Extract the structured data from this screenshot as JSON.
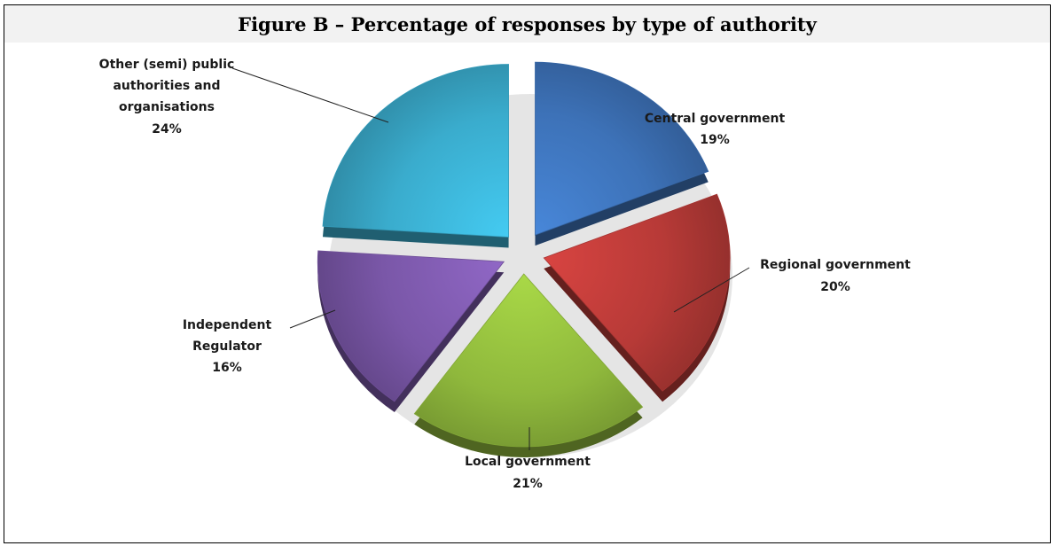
{
  "chart_data": {
    "type": "pie",
    "title": "Figure B – Percentage of responses by type of authority",
    "exploded": true,
    "style": "3d",
    "legend": "none",
    "slices": [
      {
        "label": "Central government",
        "value": 19,
        "value_label": "19%",
        "color": "#3d72b8"
      },
      {
        "label": "Regional government",
        "value": 20,
        "value_label": "20%",
        "color": "#b73a37"
      },
      {
        "label": "Local government",
        "value": 21,
        "value_label": "21%",
        "color": "#8fb83c"
      },
      {
        "label": "Independent Regulator",
        "value": 16,
        "value_label": "16%",
        "color": "#7a57a8"
      },
      {
        "label": "Other (semi) public authorities and organisations",
        "value": 24,
        "value_label": "24%",
        "color": "#3aaccd"
      }
    ]
  }
}
